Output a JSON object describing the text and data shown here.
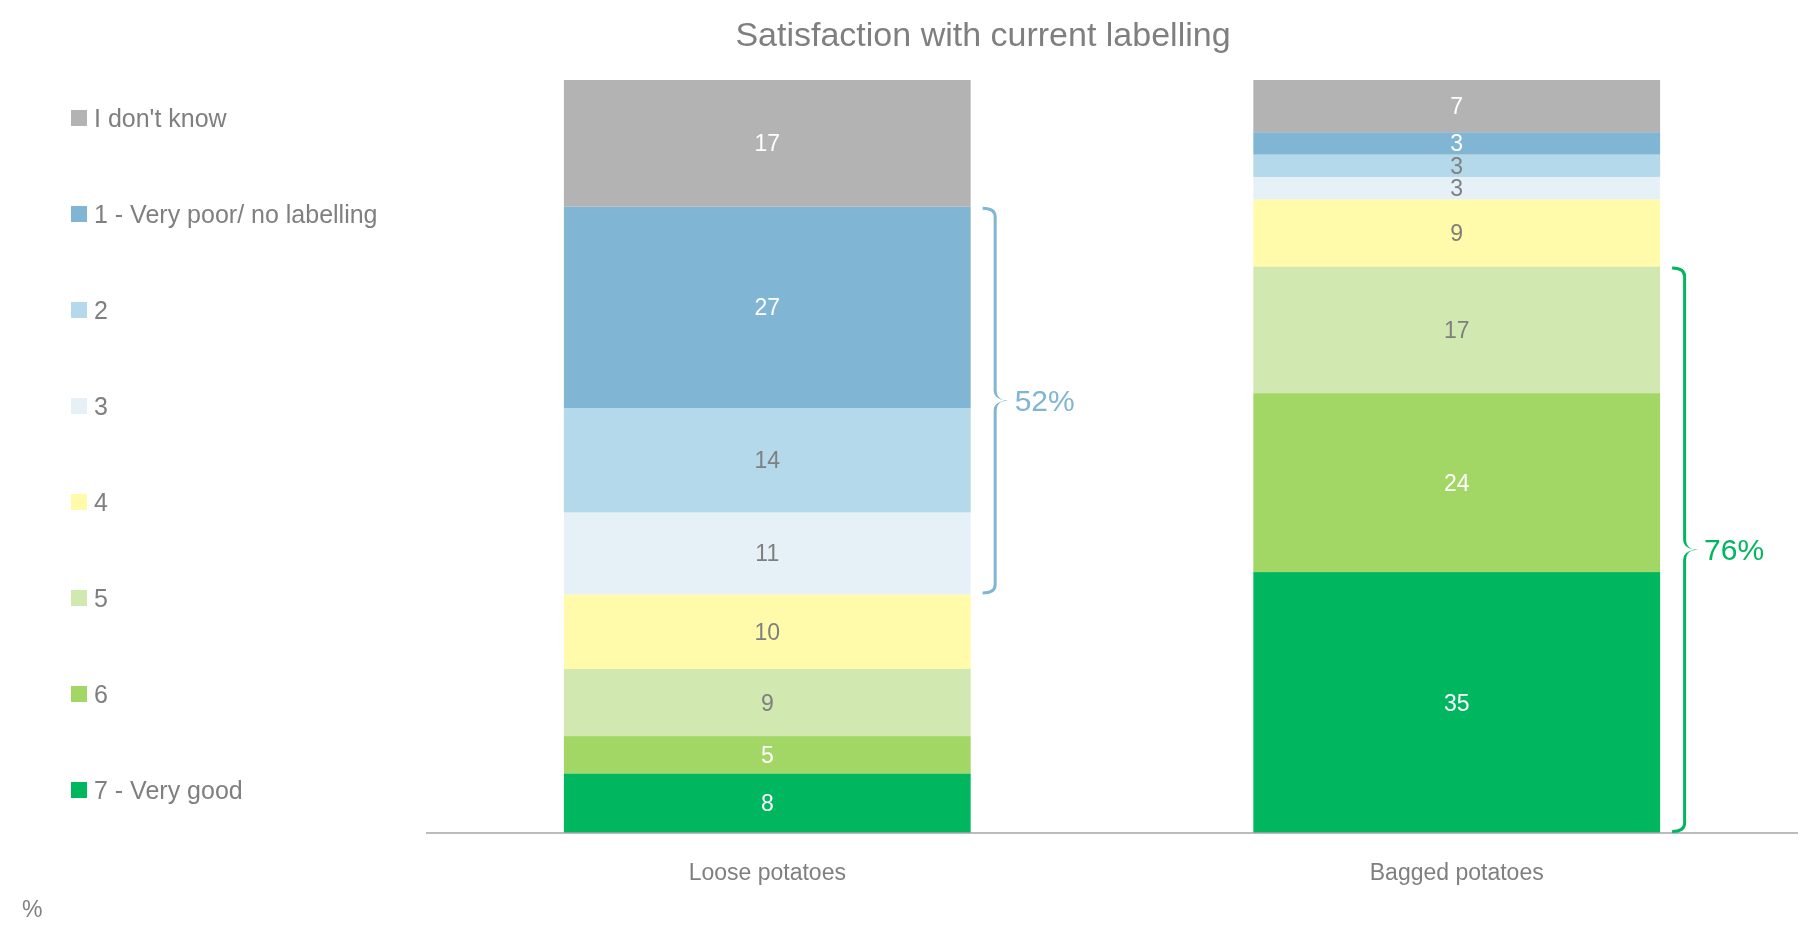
{
  "chart_data": {
    "type": "bar",
    "stacked": true,
    "title": "Satisfaction with current labelling",
    "categories": [
      "Loose potatoes",
      "Bagged potatoes"
    ],
    "series": [
      {
        "name": "7 - Very good",
        "color": "#00b760",
        "values": [
          8,
          35
        ]
      },
      {
        "name": "6",
        "color": "#a2d665",
        "values": [
          5,
          24
        ]
      },
      {
        "name": "5",
        "color": "#d1e9b0",
        "values": [
          9,
          17
        ]
      },
      {
        "name": "4",
        "color": "#fffbaa",
        "values": [
          10,
          9
        ]
      },
      {
        "name": "3",
        "color": "#e6f1f7",
        "values": [
          11,
          3
        ]
      },
      {
        "name": "2",
        "color": "#b3d9ea",
        "values": [
          14,
          3
        ]
      },
      {
        "name": "1 - Very poor/ no labelling",
        "color": "#80b5d3",
        "values": [
          27,
          3
        ]
      },
      {
        "name": "I don't know",
        "color": "#b3b3b3",
        "values": [
          17,
          7
        ]
      }
    ],
    "data_labels": true,
    "legend": "left",
    "annotations": [
      "52%",
      "76%",
      "%"
    ]
  }
}
